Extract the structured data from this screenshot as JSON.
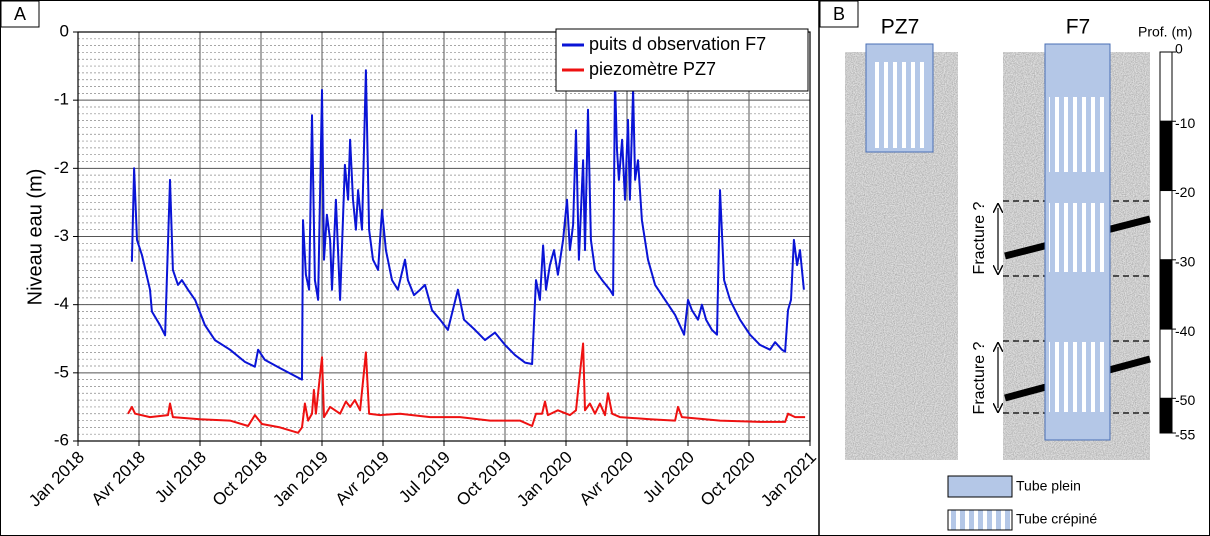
{
  "chart_data": {
    "type": "line",
    "panel_label": "A",
    "ylabel": "Niveau eau (m)",
    "xlim": [
      2018,
      2021
    ],
    "xticks": [
      {
        "value": 2018,
        "label": "Jan 2018"
      },
      {
        "value": 2018.25,
        "label": "Avr 2018"
      },
      {
        "value": 2018.5,
        "label": "Jul 2018"
      },
      {
        "value": 2018.75,
        "label": "Oct 2018"
      },
      {
        "value": 2019,
        "label": "Jan 2019"
      },
      {
        "value": 2019.25,
        "label": "Avr 2019"
      },
      {
        "value": 2019.5,
        "label": "Jul 2019"
      },
      {
        "value": 2019.75,
        "label": "Oct 2019"
      },
      {
        "value": 2020,
        "label": "Jan 2020"
      },
      {
        "value": 2020.25,
        "label": "Avr 2020"
      },
      {
        "value": 2020.5,
        "label": "Jul 2020"
      },
      {
        "value": 2020.75,
        "label": "Oct 2020"
      },
      {
        "value": 2021,
        "label": "Jan 2021"
      }
    ],
    "ylim": [
      -6,
      0
    ],
    "yticks": [
      0,
      -1,
      -2,
      -3,
      -4,
      -5,
      -6
    ],
    "grid": true,
    "minor_grid": true,
    "legend": "upper right",
    "series": [
      {
        "name": "puits d observation F7",
        "color": "#0a14d6",
        "x": [
          2018.221,
          2018.23,
          2018.242,
          2018.262,
          2018.295,
          2018.303,
          2018.336,
          2018.357,
          2018.377,
          2018.389,
          2018.41,
          2018.426,
          2018.451,
          2018.48,
          2018.52,
          2018.561,
          2018.623,
          2018.684,
          2018.725,
          2018.738,
          2018.766,
          2018.828,
          2018.902,
          2018.918,
          2018.922,
          2018.934,
          2018.947,
          2018.959,
          2018.971,
          2018.984,
          2019.0,
          2019.008,
          2019.02,
          2019.033,
          2019.041,
          2019.057,
          2019.074,
          2019.094,
          2019.107,
          2019.115,
          2019.127,
          2019.139,
          2019.148,
          2019.164,
          2019.18,
          2019.193,
          2019.209,
          2019.23,
          2019.246,
          2019.262,
          2019.287,
          2019.311,
          2019.34,
          2019.352,
          2019.377,
          2019.402,
          2019.422,
          2019.451,
          2019.484,
          2019.516,
          2019.557,
          2019.582,
          2019.627,
          2019.668,
          2019.709,
          2019.75,
          2019.791,
          2019.832,
          2019.861,
          2019.877,
          2019.893,
          2019.906,
          2019.918,
          2019.934,
          2019.951,
          2019.967,
          2019.988,
          2020.004,
          2020.016,
          2020.029,
          2020.041,
          2020.053,
          2020.07,
          2020.078,
          2020.09,
          2020.102,
          2020.119,
          2020.148,
          2020.18,
          2020.193,
          2020.201,
          2020.209,
          2020.217,
          2020.23,
          2020.242,
          2020.254,
          2020.262,
          2020.275,
          2020.283,
          2020.295,
          2020.311,
          2020.336,
          2020.365,
          2020.406,
          2020.447,
          2020.484,
          2020.5,
          2020.516,
          2020.541,
          2020.557,
          2020.574,
          2020.598,
          2020.619,
          2020.631,
          2020.648,
          2020.672,
          2020.713,
          2020.754,
          2020.795,
          2020.836,
          2020.857,
          2020.885,
          2020.898,
          2020.91,
          2020.922,
          2020.934,
          2020.947,
          2020.959,
          2020.975
        ],
        "values": [
          -3.37,
          -2.0,
          -3.05,
          -3.27,
          -3.78,
          -4.1,
          -4.3,
          -4.45,
          -2.17,
          -3.49,
          -3.71,
          -3.64,
          -3.78,
          -3.93,
          -4.3,
          -4.52,
          -4.66,
          -4.84,
          -4.91,
          -4.66,
          -4.81,
          -4.93,
          -5.07,
          -5.1,
          -2.76,
          -3.56,
          -3.78,
          -1.22,
          -3.64,
          -3.93,
          -0.85,
          -3.34,
          -2.68,
          -3.05,
          -3.78,
          -2.46,
          -3.93,
          -1.95,
          -2.46,
          -1.58,
          -2.46,
          -2.9,
          -2.32,
          -2.9,
          -0.56,
          -2.9,
          -3.34,
          -3.49,
          -2.61,
          -3.2,
          -3.64,
          -3.78,
          -3.34,
          -3.64,
          -3.86,
          -3.78,
          -3.71,
          -4.08,
          -4.22,
          -4.37,
          -3.78,
          -4.22,
          -4.37,
          -4.52,
          -4.41,
          -4.59,
          -4.74,
          -4.85,
          -4.87,
          -3.64,
          -3.93,
          -3.13,
          -3.78,
          -3.42,
          -3.2,
          -3.56,
          -3.05,
          -2.46,
          -3.2,
          -2.83,
          -1.44,
          -3.34,
          -1.88,
          -3.2,
          -1.14,
          -3.05,
          -3.49,
          -3.64,
          -3.78,
          -3.86,
          -0.7,
          -1.73,
          -2.17,
          -1.58,
          -2.46,
          -1.29,
          -2.46,
          -0.85,
          -2.17,
          -1.88,
          -2.76,
          -3.34,
          -3.71,
          -3.93,
          -4.15,
          -4.44,
          -3.93,
          -4.08,
          -4.22,
          -4.0,
          -4.22,
          -4.37,
          -4.44,
          -2.32,
          -3.64,
          -3.93,
          -4.22,
          -4.44,
          -4.59,
          -4.66,
          -4.55,
          -4.66,
          -4.69,
          -4.08,
          -3.93,
          -3.05,
          -3.42,
          -3.2,
          -3.78
        ]
      },
      {
        "name": "piezomètre PZ7",
        "color": "#ee1111",
        "x": [
          2018.205,
          2018.221,
          2018.234,
          2018.295,
          2018.369,
          2018.377,
          2018.389,
          2018.5,
          2018.623,
          2018.697,
          2018.725,
          2018.754,
          2018.828,
          2018.902,
          2018.918,
          2018.93,
          2018.943,
          2018.959,
          2018.967,
          2018.975,
          2019.0,
          2019.008,
          2019.033,
          2019.074,
          2019.098,
          2019.115,
          2019.135,
          2019.156,
          2019.18,
          2019.193,
          2019.238,
          2019.32,
          2019.443,
          2019.566,
          2019.689,
          2019.811,
          2019.861,
          2019.877,
          2019.902,
          2019.914,
          2019.926,
          2019.967,
          2020.016,
          2020.041,
          2020.07,
          2020.078,
          2020.098,
          2020.119,
          2020.139,
          2020.16,
          2020.172,
          2020.189,
          2020.221,
          2020.344,
          2020.447,
          2020.459,
          2020.475,
          2020.631,
          2020.795,
          2020.898,
          2020.91,
          2020.939,
          2020.98
        ],
        "values": [
          -5.6,
          -5.5,
          -5.6,
          -5.65,
          -5.62,
          -5.45,
          -5.65,
          -5.68,
          -5.7,
          -5.78,
          -5.62,
          -5.75,
          -5.8,
          -5.88,
          -5.8,
          -5.45,
          -5.7,
          -5.6,
          -5.25,
          -5.6,
          -4.77,
          -5.65,
          -5.5,
          -5.6,
          -5.42,
          -5.5,
          -5.4,
          -5.55,
          -4.7,
          -5.6,
          -5.62,
          -5.6,
          -5.65,
          -5.65,
          -5.7,
          -5.7,
          -5.78,
          -5.6,
          -5.6,
          -5.42,
          -5.62,
          -5.55,
          -5.62,
          -5.55,
          -4.57,
          -5.55,
          -5.45,
          -5.6,
          -5.45,
          -5.62,
          -5.3,
          -5.6,
          -5.65,
          -5.68,
          -5.7,
          -5.5,
          -5.65,
          -5.7,
          -5.72,
          -5.72,
          -5.6,
          -5.65,
          -5.65
        ]
      }
    ]
  },
  "panel_b": {
    "label": "B",
    "well_1": "PZ7",
    "well_2": "F7",
    "fracture_labels": [
      "Fracture ?",
      "Fracture ?"
    ],
    "depth_scale": {
      "label": "Prof. (m)",
      "lim": [
        -55,
        0
      ],
      "ticks": [
        0,
        -10,
        -20,
        -30,
        -40,
        -50,
        -55
      ]
    },
    "legend": [
      "Tube plein",
      "Tube crépiné"
    ]
  }
}
